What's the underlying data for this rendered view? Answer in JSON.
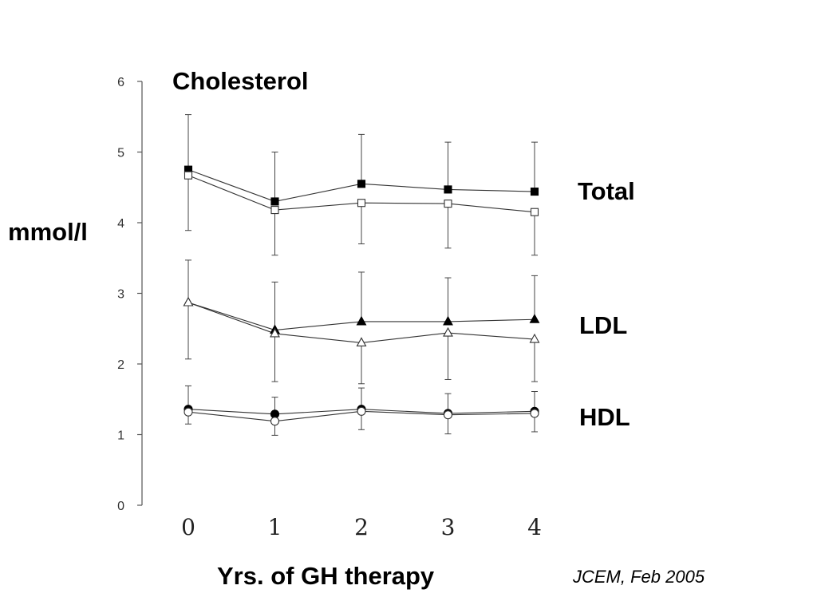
{
  "chart_data": {
    "type": "line",
    "title": "Cholesterol",
    "ylabel": "mmol/l",
    "xlabel": "Yrs. of GH therapy",
    "source": "JCEM, Feb 2005",
    "x": [
      0,
      1,
      2,
      3,
      4
    ],
    "x_tick_labels": [
      "0",
      "1",
      "2",
      "3",
      "4"
    ],
    "ylim": [
      0,
      6
    ],
    "y_ticks": [
      0,
      1,
      2,
      3,
      4,
      5,
      6
    ],
    "grid": false,
    "group_labels": [
      {
        "key": "total",
        "text": "Total"
      },
      {
        "key": "ldl",
        "text": "LDL"
      },
      {
        "key": "hdl",
        "text": "HDL"
      }
    ],
    "series": [
      {
        "group": "total",
        "marker": "square",
        "filled": true,
        "values": [
          4.75,
          4.3,
          4.55,
          4.47,
          4.44
        ],
        "error_up": [
          0.78,
          0.7,
          0.7,
          0.67,
          0.7
        ]
      },
      {
        "group": "total",
        "marker": "square",
        "filled": false,
        "values": [
          4.67,
          4.18,
          4.28,
          4.27,
          4.15
        ],
        "error_down": [
          0.78,
          0.64,
          0.58,
          0.63,
          0.61
        ]
      },
      {
        "group": "ldl",
        "marker": "triangle",
        "filled": true,
        "values": [
          2.87,
          2.48,
          2.6,
          2.6,
          2.63
        ],
        "error_up": [
          0.6,
          0.68,
          0.7,
          0.62,
          0.62
        ]
      },
      {
        "group": "ldl",
        "marker": "triangle",
        "filled": false,
        "values": [
          2.87,
          2.43,
          2.3,
          2.44,
          2.35
        ],
        "error_down": [
          0.8,
          0.68,
          0.58,
          0.66,
          0.6
        ]
      },
      {
        "group": "hdl",
        "marker": "circle",
        "filled": true,
        "values": [
          1.36,
          1.29,
          1.36,
          1.3,
          1.33
        ],
        "error_up": [
          0.33,
          0.24,
          0.3,
          0.28,
          0.28
        ]
      },
      {
        "group": "hdl",
        "marker": "circle",
        "filled": false,
        "values": [
          1.32,
          1.19,
          1.33,
          1.28,
          1.3
        ],
        "error_down": [
          0.17,
          0.2,
          0.26,
          0.27,
          0.26
        ]
      }
    ]
  }
}
